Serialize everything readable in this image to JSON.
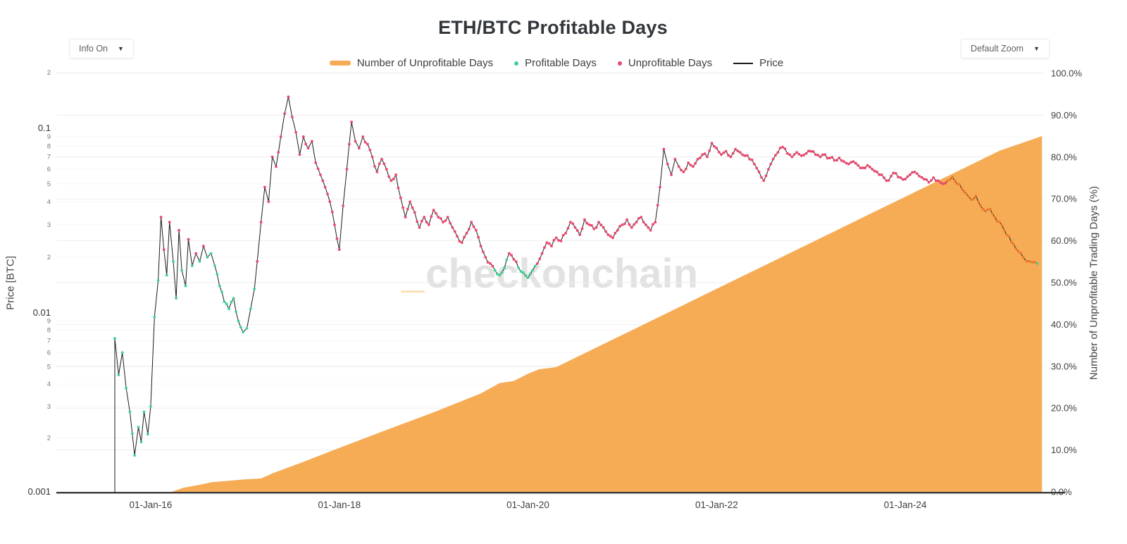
{
  "title": "ETH/BTC Profitable Days",
  "controls": {
    "info_dropdown": "Info On",
    "zoom_dropdown": "Default Zoom",
    "caret": "▼"
  },
  "legend": [
    {
      "label": "Number of Unprofitable Days",
      "type": "band",
      "color": "#f6ac55"
    },
    {
      "label": "Profitable Days",
      "type": "dot",
      "color": "#3ed192"
    },
    {
      "label": "Unprofitable Days",
      "type": "dot",
      "color": "#e9486d"
    },
    {
      "label": "Price",
      "type": "line",
      "color": "#1b1b1b"
    }
  ],
  "watermark": {
    "prefix": "_",
    "text": "checkonchain"
  },
  "colors": {
    "band": "#f6ac55",
    "profitable": "#3ed192",
    "unprofitable": "#e9486d",
    "recent": "#ed7d31",
    "price_line": "#1b1b1b",
    "grid": "#eeeeee",
    "grid_minor": "#f6f6f6",
    "axis_line": "#3c3c3c",
    "tick_major": "#333333",
    "tick_minor": "#777777",
    "tick_right": "#3f3f3f"
  },
  "chart_data": {
    "type": "line+area",
    "title": "ETH/BTC Profitable Days",
    "x_range_years": [
      2015.0,
      2025.47
    ],
    "x_ticks": [
      {
        "label": "01-Jan-16",
        "year": 2016
      },
      {
        "label": "01-Jan-18",
        "year": 2018
      },
      {
        "label": "01-Jan-20",
        "year": 2020
      },
      {
        "label": "01-Jan-22",
        "year": 2022
      },
      {
        "label": "01-Jan-24",
        "year": 2024
      }
    ],
    "y_left": {
      "label": "Price [BTC]",
      "scale": "log",
      "range": [
        0.001,
        0.2
      ]
    },
    "y_left_ticks": [
      {
        "label": "2",
        "value": 0.2,
        "minor": true
      },
      {
        "label": "0.1",
        "value": 0.1,
        "minor": false
      },
      {
        "label": "9",
        "value": 0.09,
        "minor": true
      },
      {
        "label": "8",
        "value": 0.08,
        "minor": true
      },
      {
        "label": "7",
        "value": 0.07,
        "minor": true
      },
      {
        "label": "6",
        "value": 0.06,
        "minor": true
      },
      {
        "label": "5",
        "value": 0.05,
        "minor": true
      },
      {
        "label": "4",
        "value": 0.04,
        "minor": true
      },
      {
        "label": "3",
        "value": 0.03,
        "minor": true
      },
      {
        "label": "2",
        "value": 0.02,
        "minor": true
      },
      {
        "label": "0.01",
        "value": 0.01,
        "minor": false
      },
      {
        "label": "9",
        "value": 0.009,
        "minor": true
      },
      {
        "label": "8",
        "value": 0.008,
        "minor": true
      },
      {
        "label": "7",
        "value": 0.007,
        "minor": true
      },
      {
        "label": "6",
        "value": 0.006,
        "minor": true
      },
      {
        "label": "5",
        "value": 0.005,
        "minor": true
      },
      {
        "label": "4",
        "value": 0.004,
        "minor": true
      },
      {
        "label": "3",
        "value": 0.003,
        "minor": true
      },
      {
        "label": "2",
        "value": 0.002,
        "minor": true
      },
      {
        "label": "0.001",
        "value": 0.001,
        "minor": false
      }
    ],
    "y_right": {
      "label": "Number of Unprofitable Trading Days (%)",
      "range": [
        0,
        100
      ]
    },
    "y_right_ticks": [
      {
        "label": "0.0%",
        "value": 0
      },
      {
        "label": "10.0%",
        "value": 10
      },
      {
        "label": "20.0%",
        "value": 20
      },
      {
        "label": "30.0%",
        "value": 30
      },
      {
        "label": "40.0%",
        "value": 40
      },
      {
        "label": "50.0%",
        "value": 50
      },
      {
        "label": "60.0%",
        "value": 60
      },
      {
        "label": "70.0%",
        "value": 70
      },
      {
        "label": "80.0%",
        "value": 80
      },
      {
        "label": "90.0%",
        "value": 90
      },
      {
        "label": "100.0%",
        "value": 100
      }
    ],
    "series_notes": "price_btc points are [decimal_year, ETH/BTC price, segment]; segment g=profitable(green), p=unprofitable(pink), o=recent-unprofitable(orange). unprofitable_days_pct is the orange area [decimal_year, percent].",
    "unprofitable_days_pct": [
      [
        2015.62,
        0
      ],
      [
        2016.22,
        0
      ],
      [
        2016.35,
        1.0
      ],
      [
        2016.5,
        1.6
      ],
      [
        2016.65,
        2.3
      ],
      [
        2016.8,
        2.6
      ],
      [
        2017.0,
        3.0
      ],
      [
        2017.17,
        3.2
      ],
      [
        2017.3,
        4.5
      ],
      [
        2017.6,
        7.0
      ],
      [
        2018.0,
        10.5
      ],
      [
        2018.5,
        14.8
      ],
      [
        2019.0,
        19.0
      ],
      [
        2019.5,
        23.5
      ],
      [
        2019.7,
        26.0
      ],
      [
        2019.85,
        26.5
      ],
      [
        2020.0,
        28.2
      ],
      [
        2020.12,
        29.3
      ],
      [
        2020.3,
        29.8
      ],
      [
        2020.5,
        32.0
      ],
      [
        2021.0,
        37.5
      ],
      [
        2021.5,
        43.0
      ],
      [
        2022.0,
        48.5
      ],
      [
        2022.5,
        54.0
      ],
      [
        2023.0,
        59.5
      ],
      [
        2023.5,
        65.0
      ],
      [
        2024.0,
        70.5
      ],
      [
        2024.5,
        76.0
      ],
      [
        2025.0,
        81.5
      ],
      [
        2025.45,
        85.0
      ]
    ],
    "price_btc": [
      [
        2015.62,
        0.0072,
        "g"
      ],
      [
        2015.66,
        0.0045,
        "g"
      ],
      [
        2015.7,
        0.006,
        "g"
      ],
      [
        2015.74,
        0.0038,
        "g"
      ],
      [
        2015.78,
        0.0028,
        "g"
      ],
      [
        2015.83,
        0.0016,
        "g"
      ],
      [
        2015.87,
        0.0023,
        "g"
      ],
      [
        2015.9,
        0.0019,
        "g"
      ],
      [
        2015.93,
        0.0028,
        "g"
      ],
      [
        2015.97,
        0.0021,
        "g"
      ],
      [
        2016.0,
        0.003,
        "g"
      ],
      [
        2016.04,
        0.0095,
        "g"
      ],
      [
        2016.08,
        0.015,
        "g"
      ],
      [
        2016.11,
        0.033,
        "p"
      ],
      [
        2016.14,
        0.022,
        "p"
      ],
      [
        2016.17,
        0.016,
        "g"
      ],
      [
        2016.2,
        0.031,
        "p"
      ],
      [
        2016.24,
        0.019,
        "g"
      ],
      [
        2016.27,
        0.012,
        "g"
      ],
      [
        2016.3,
        0.028,
        "p"
      ],
      [
        2016.33,
        0.017,
        "g"
      ],
      [
        2016.37,
        0.014,
        "g"
      ],
      [
        2016.4,
        0.025,
        "p"
      ],
      [
        2016.44,
        0.018,
        "g"
      ],
      [
        2016.48,
        0.021,
        "p"
      ],
      [
        2016.52,
        0.019,
        "g"
      ],
      [
        2016.56,
        0.023,
        "p"
      ],
      [
        2016.6,
        0.02,
        "g"
      ],
      [
        2016.64,
        0.021,
        "g"
      ],
      [
        2016.68,
        0.018,
        "g"
      ],
      [
        2016.73,
        0.014,
        "g"
      ],
      [
        2016.78,
        0.0115,
        "g"
      ],
      [
        2016.83,
        0.0105,
        "g"
      ],
      [
        2016.88,
        0.012,
        "g"
      ],
      [
        2016.93,
        0.009,
        "g"
      ],
      [
        2016.98,
        0.0078,
        "g"
      ],
      [
        2017.02,
        0.0082,
        "g"
      ],
      [
        2017.06,
        0.0105,
        "g"
      ],
      [
        2017.1,
        0.0135,
        "g"
      ],
      [
        2017.13,
        0.019,
        "p"
      ],
      [
        2017.17,
        0.031,
        "p"
      ],
      [
        2017.21,
        0.048,
        "p"
      ],
      [
        2017.25,
        0.04,
        "p"
      ],
      [
        2017.29,
        0.07,
        "p"
      ],
      [
        2017.33,
        0.062,
        "p"
      ],
      [
        2017.38,
        0.09,
        "p"
      ],
      [
        2017.42,
        0.12,
        "p"
      ],
      [
        2017.46,
        0.148,
        "p"
      ],
      [
        2017.5,
        0.115,
        "p"
      ],
      [
        2017.54,
        0.095,
        "p"
      ],
      [
        2017.58,
        0.072,
        "p"
      ],
      [
        2017.62,
        0.09,
        "p"
      ],
      [
        2017.67,
        0.078,
        "p"
      ],
      [
        2017.71,
        0.085,
        "p"
      ],
      [
        2017.75,
        0.065,
        "p"
      ],
      [
        2017.8,
        0.056,
        "p"
      ],
      [
        2017.85,
        0.048,
        "p"
      ],
      [
        2017.9,
        0.04,
        "p"
      ],
      [
        2017.95,
        0.03,
        "p"
      ],
      [
        2018.0,
        0.022,
        "p"
      ],
      [
        2018.04,
        0.038,
        "p"
      ],
      [
        2018.08,
        0.06,
        "p"
      ],
      [
        2018.13,
        0.108,
        "p"
      ],
      [
        2018.17,
        0.085,
        "p"
      ],
      [
        2018.21,
        0.078,
        "p"
      ],
      [
        2018.25,
        0.09,
        "p"
      ],
      [
        2018.3,
        0.082,
        "p"
      ],
      [
        2018.35,
        0.07,
        "p"
      ],
      [
        2018.4,
        0.058,
        "p"
      ],
      [
        2018.45,
        0.068,
        "p"
      ],
      [
        2018.5,
        0.06,
        "p"
      ],
      [
        2018.55,
        0.052,
        "p"
      ],
      [
        2018.6,
        0.056,
        "p"
      ],
      [
        2018.65,
        0.042,
        "p"
      ],
      [
        2018.7,
        0.033,
        "p"
      ],
      [
        2018.75,
        0.04,
        "p"
      ],
      [
        2018.8,
        0.035,
        "p"
      ],
      [
        2018.85,
        0.029,
        "p"
      ],
      [
        2018.9,
        0.033,
        "p"
      ],
      [
        2018.95,
        0.03,
        "p"
      ],
      [
        2019.0,
        0.036,
        "p"
      ],
      [
        2019.05,
        0.033,
        "p"
      ],
      [
        2019.1,
        0.031,
        "p"
      ],
      [
        2019.15,
        0.033,
        "p"
      ],
      [
        2019.2,
        0.029,
        "p"
      ],
      [
        2019.25,
        0.026,
        "p"
      ],
      [
        2019.3,
        0.024,
        "p"
      ],
      [
        2019.35,
        0.027,
        "p"
      ],
      [
        2019.4,
        0.031,
        "p"
      ],
      [
        2019.45,
        0.028,
        "p"
      ],
      [
        2019.5,
        0.023,
        "p"
      ],
      [
        2019.55,
        0.02,
        "p"
      ],
      [
        2019.6,
        0.0185,
        "p"
      ],
      [
        2019.65,
        0.017,
        "g"
      ],
      [
        2019.7,
        0.016,
        "g"
      ],
      [
        2019.75,
        0.0175,
        "g"
      ],
      [
        2019.8,
        0.021,
        "p"
      ],
      [
        2019.85,
        0.0195,
        "p"
      ],
      [
        2019.9,
        0.0175,
        "g"
      ],
      [
        2019.95,
        0.0165,
        "g"
      ],
      [
        2020.0,
        0.0155,
        "g"
      ],
      [
        2020.05,
        0.017,
        "g"
      ],
      [
        2020.1,
        0.0185,
        "p"
      ],
      [
        2020.15,
        0.021,
        "p"
      ],
      [
        2020.2,
        0.024,
        "p"
      ],
      [
        2020.25,
        0.023,
        "p"
      ],
      [
        2020.3,
        0.0255,
        "p"
      ],
      [
        2020.35,
        0.0245,
        "p"
      ],
      [
        2020.4,
        0.027,
        "p"
      ],
      [
        2020.45,
        0.031,
        "p"
      ],
      [
        2020.5,
        0.029,
        "p"
      ],
      [
        2020.55,
        0.0265,
        "p"
      ],
      [
        2020.6,
        0.032,
        "p"
      ],
      [
        2020.65,
        0.03,
        "p"
      ],
      [
        2020.7,
        0.0285,
        "p"
      ],
      [
        2020.75,
        0.031,
        "p"
      ],
      [
        2020.8,
        0.029,
        "p"
      ],
      [
        2020.85,
        0.0265,
        "p"
      ],
      [
        2020.9,
        0.0255,
        "p"
      ],
      [
        2020.95,
        0.028,
        "p"
      ],
      [
        2021.0,
        0.03,
        "p"
      ],
      [
        2021.05,
        0.032,
        "p"
      ],
      [
        2021.1,
        0.029,
        "p"
      ],
      [
        2021.15,
        0.031,
        "p"
      ],
      [
        2021.2,
        0.033,
        "p"
      ],
      [
        2021.25,
        0.03,
        "p"
      ],
      [
        2021.3,
        0.028,
        "p"
      ],
      [
        2021.35,
        0.031,
        "p"
      ],
      [
        2021.4,
        0.048,
        "p"
      ],
      [
        2021.44,
        0.077,
        "p"
      ],
      [
        2021.48,
        0.064,
        "p"
      ],
      [
        2021.52,
        0.056,
        "p"
      ],
      [
        2021.56,
        0.068,
        "p"
      ],
      [
        2021.6,
        0.062,
        "p"
      ],
      [
        2021.65,
        0.058,
        "p"
      ],
      [
        2021.7,
        0.065,
        "p"
      ],
      [
        2021.75,
        0.062,
        "p"
      ],
      [
        2021.8,
        0.068,
        "p"
      ],
      [
        2021.85,
        0.072,
        "p"
      ],
      [
        2021.9,
        0.07,
        "p"
      ],
      [
        2021.95,
        0.083,
        "p"
      ],
      [
        2022.0,
        0.078,
        "p"
      ],
      [
        2022.05,
        0.072,
        "p"
      ],
      [
        2022.1,
        0.075,
        "p"
      ],
      [
        2022.15,
        0.07,
        "p"
      ],
      [
        2022.2,
        0.077,
        "p"
      ],
      [
        2022.25,
        0.074,
        "p"
      ],
      [
        2022.3,
        0.071,
        "p"
      ],
      [
        2022.35,
        0.068,
        "p"
      ],
      [
        2022.4,
        0.064,
        "p"
      ],
      [
        2022.45,
        0.058,
        "p"
      ],
      [
        2022.5,
        0.052,
        "p"
      ],
      [
        2022.55,
        0.06,
        "p"
      ],
      [
        2022.6,
        0.068,
        "p"
      ],
      [
        2022.65,
        0.074,
        "p"
      ],
      [
        2022.7,
        0.079,
        "p"
      ],
      [
        2022.75,
        0.073,
        "p"
      ],
      [
        2022.8,
        0.07,
        "p"
      ],
      [
        2022.85,
        0.074,
        "p"
      ],
      [
        2022.9,
        0.071,
        "p"
      ],
      [
        2022.95,
        0.073,
        "p"
      ],
      [
        2023.0,
        0.075,
        "p"
      ],
      [
        2023.05,
        0.072,
        "p"
      ],
      [
        2023.1,
        0.07,
        "p"
      ],
      [
        2023.15,
        0.072,
        "p"
      ],
      [
        2023.2,
        0.069,
        "p"
      ],
      [
        2023.25,
        0.067,
        "p"
      ],
      [
        2023.3,
        0.069,
        "p"
      ],
      [
        2023.35,
        0.066,
        "p"
      ],
      [
        2023.4,
        0.064,
        "p"
      ],
      [
        2023.45,
        0.066,
        "p"
      ],
      [
        2023.5,
        0.063,
        "p"
      ],
      [
        2023.55,
        0.061,
        "p"
      ],
      [
        2023.6,
        0.063,
        "p"
      ],
      [
        2023.65,
        0.06,
        "p"
      ],
      [
        2023.7,
        0.058,
        "p"
      ],
      [
        2023.75,
        0.056,
        "p"
      ],
      [
        2023.8,
        0.052,
        "p"
      ],
      [
        2023.85,
        0.055,
        "p"
      ],
      [
        2023.9,
        0.057,
        "p"
      ],
      [
        2023.95,
        0.054,
        "p"
      ],
      [
        2024.0,
        0.053,
        "p"
      ],
      [
        2024.05,
        0.056,
        "p"
      ],
      [
        2024.1,
        0.058,
        "p"
      ],
      [
        2024.15,
        0.055,
        "p"
      ],
      [
        2024.2,
        0.053,
        "p"
      ],
      [
        2024.25,
        0.051,
        "p"
      ],
      [
        2024.3,
        0.054,
        "p"
      ],
      [
        2024.35,
        0.052,
        "p"
      ],
      [
        2024.4,
        0.05,
        "p"
      ],
      [
        2024.45,
        0.052,
        "o"
      ],
      [
        2024.5,
        0.0545,
        "o"
      ],
      [
        2024.55,
        0.05,
        "o"
      ],
      [
        2024.6,
        0.047,
        "o"
      ],
      [
        2024.65,
        0.044,
        "o"
      ],
      [
        2024.7,
        0.041,
        "o"
      ],
      [
        2024.75,
        0.043,
        "o"
      ],
      [
        2024.8,
        0.038,
        "o"
      ],
      [
        2024.85,
        0.0355,
        "o"
      ],
      [
        2024.9,
        0.0365,
        "o"
      ],
      [
        2024.95,
        0.033,
        "o"
      ],
      [
        2025.0,
        0.031,
        "o"
      ],
      [
        2025.05,
        0.028,
        "o"
      ],
      [
        2025.1,
        0.026,
        "o"
      ],
      [
        2025.15,
        0.0235,
        "o"
      ],
      [
        2025.2,
        0.0215,
        "o"
      ],
      [
        2025.25,
        0.02,
        "o"
      ],
      [
        2025.32,
        0.019,
        "o"
      ],
      [
        2025.4,
        0.0185,
        "g"
      ]
    ]
  }
}
